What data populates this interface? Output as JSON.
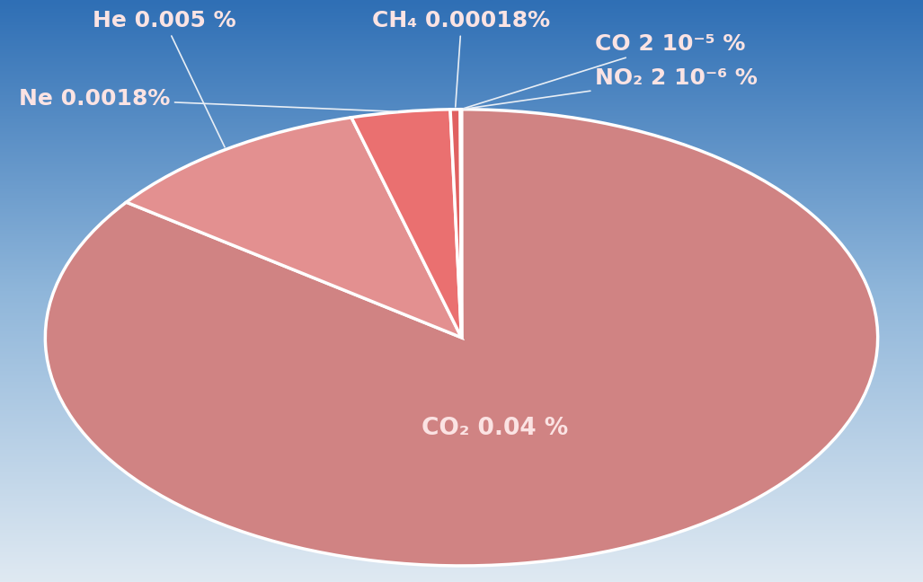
{
  "chart_data": {
    "type": "pie",
    "categories": [
      "CO₂ 0.04 %",
      "He 0.005 %",
      "Ne 0.0018%",
      "CH₄ 0.00018%",
      "CO 2 10⁻⁵ %",
      "NO₂ 2 10⁻⁶ %"
    ],
    "values": [
      0.04,
      0.005,
      0.0018,
      0.00018,
      2e-05,
      2e-06
    ],
    "colors": [
      "#d08383",
      "#e39090",
      "#ea7070",
      "#e06060",
      "#d05858",
      "#c85050"
    ]
  }
}
